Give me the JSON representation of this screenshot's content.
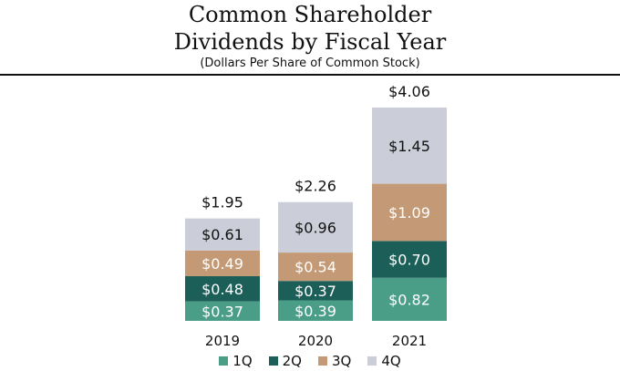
{
  "chart_data": {
    "type": "bar",
    "stacked": true,
    "title": "Common Shareholder Dividends by Fiscal Year",
    "title_lines": [
      "Common Shareholder",
      "Dividends by Fiscal Year"
    ],
    "subtitle": "(Dollars Per Share of Common Stock)",
    "xlabel": "",
    "ylabel": "",
    "categories": [
      "2019",
      "2020",
      "2021"
    ],
    "series": [
      {
        "name": "1Q",
        "color": "#4a9e88",
        "values": [
          0.37,
          0.39,
          0.82
        ],
        "labels": [
          "$0.37",
          "$0.39",
          "$0.82"
        ],
        "label_color": "#ffffff"
      },
      {
        "name": "2Q",
        "color": "#1c5e58",
        "values": [
          0.48,
          0.37,
          0.7
        ],
        "labels": [
          "$0.48",
          "$0.37",
          "$0.70"
        ],
        "label_color": "#ffffff"
      },
      {
        "name": "3Q",
        "color": "#c49a76",
        "values": [
          0.49,
          0.54,
          1.09
        ],
        "labels": [
          "$0.49",
          "$0.54",
          "$1.09"
        ],
        "label_color": "#ffffff"
      },
      {
        "name": "4Q",
        "color": "#cbced8",
        "values": [
          0.61,
          0.96,
          1.45
        ],
        "labels": [
          "$0.61",
          "$0.96",
          "$1.45"
        ],
        "label_color": "#111111"
      }
    ],
    "totals": [
      1.95,
      2.26,
      4.06
    ],
    "total_labels": [
      "$1.95",
      "$2.26",
      "$4.06"
    ],
    "ylim": [
      0,
      4.06
    ],
    "grid": false,
    "legend_position": "bottom"
  }
}
